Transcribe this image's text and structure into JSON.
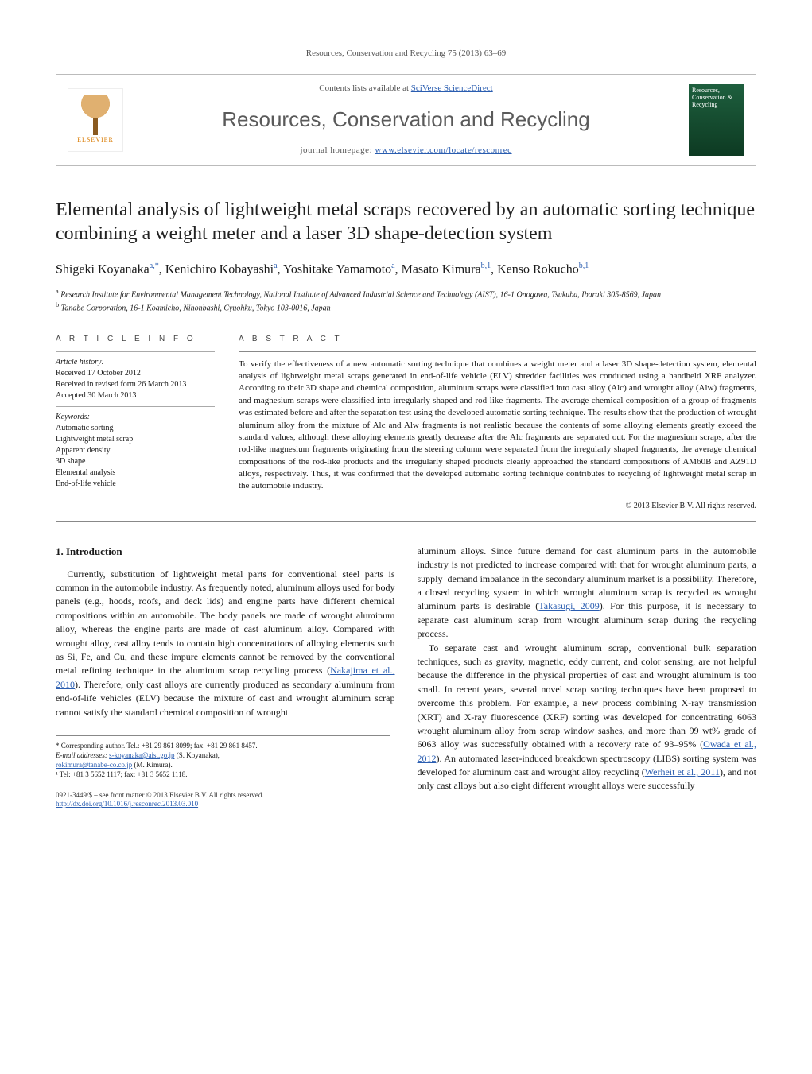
{
  "running_head": {
    "text_prefix": "Resources, Conservation and Recycling 75 (2013) 63–69",
    "link_text": ""
  },
  "masthead": {
    "elsevier_label": "ELSEVIER",
    "contents_prefix": "Contents lists available at ",
    "contents_link": "SciVerse ScienceDirect",
    "journal_name": "Resources, Conservation and Recycling",
    "homepage_prefix": "journal homepage: ",
    "homepage_link": "www.elsevier.com/locate/resconrec",
    "cover_title": "Resources, Conservation & Recycling"
  },
  "article": {
    "title": "Elemental analysis of lightweight metal scraps recovered by an automatic sorting technique combining a weight meter and a laser 3D shape-detection system",
    "authors_html": "Shigeki Koyanaka<sup>a,*</sup>, Kenichiro Kobayashi<sup>a</sup>, Yoshitake Yamamoto<sup>a</sup>, Masato Kimura<sup>b,1</sup>, Kenso Rokucho<sup>b,1</sup>",
    "affiliations": {
      "a": "Research Institute for Environmental Management Technology, National Institute of Advanced Industrial Science and Technology (AIST), 16-1 Onogawa, Tsukuba, Ibaraki 305-8569, Japan",
      "b": "Tanabe Corporation, 16-1 Koamicho, Nihonbashi, Cyuohku, Tokyo 103-0016, Japan"
    }
  },
  "article_info": {
    "heading": "a r t i c l e   i n f o",
    "history_label": "Article history:",
    "history": [
      "Received 17 October 2012",
      "Received in revised form 26 March 2013",
      "Accepted 30 March 2013"
    ],
    "keywords_label": "Keywords:",
    "keywords": [
      "Automatic sorting",
      "Lightweight metal scrap",
      "Apparent density",
      "3D shape",
      "Elemental analysis",
      "End-of-life vehicle"
    ]
  },
  "abstract": {
    "heading": "a b s t r a c t",
    "text": "To verify the effectiveness of a new automatic sorting technique that combines a weight meter and a laser 3D shape-detection system, elemental analysis of lightweight metal scraps generated in end-of-life vehicle (ELV) shredder facilities was conducted using a handheld XRF analyzer. According to their 3D shape and chemical composition, aluminum scraps were classified into cast alloy (Alc) and wrought alloy (Alw) fragments, and magnesium scraps were classified into irregularly shaped and rod-like fragments. The average chemical composition of a group of fragments was estimated before and after the separation test using the developed automatic sorting technique. The results show that the production of wrought aluminum alloy from the mixture of Alc and Alw fragments is not realistic because the contents of some alloying elements greatly exceed the standard values, although these alloying elements greatly decrease after the Alc fragments are separated out. For the magnesium scraps, after the rod-like magnesium fragments originating from the steering column were separated from the irregularly shaped fragments, the average chemical compositions of the rod-like products and the irregularly shaped products clearly approached the standard compositions of AM60B and AZ91D alloys, respectively. Thus, it was confirmed that the developed automatic sorting technique contributes to recycling of lightweight metal scrap in the automobile industry.",
    "copyright": "© 2013 Elsevier B.V. All rights reserved."
  },
  "body": {
    "section1_heading": "1. Introduction",
    "para1": "Currently, substitution of lightweight metal parts for conventional steel parts is common in the automobile industry. As frequently noted, aluminum alloys used for body panels (e.g., hoods, roofs, and deck lids) and engine parts have different chemical compositions within an automobile. The body panels are made of wrought aluminum alloy, whereas the engine parts are made of cast aluminum alloy. Compared with wrought alloy, cast alloy tends to contain high concentrations of alloying elements such as Si, Fe, and Cu, and these impure elements cannot be removed by the conventional metal refining technique in the aluminum scrap recycling process (",
    "cite1": "Nakajima et al., 2010",
    "para1b": "). Therefore, only cast alloys are currently produced as secondary aluminum from end-of-life vehicles (ELV) because the mixture of cast and wrought aluminum scrap cannot satisfy the standard chemical composition of wrought",
    "para2a": "aluminum alloys. Since future demand for cast aluminum parts in the automobile industry is not predicted to increase compared with that for wrought aluminum parts, a supply–demand imbalance in the secondary aluminum market is a possibility. Therefore, a closed recycling system in which wrought aluminum scrap is recycled as wrought aluminum parts is desirable (",
    "cite2": "Takasugi, 2009",
    "para2b": "). For this purpose, it is necessary to separate cast aluminum scrap from wrought aluminum scrap during the recycling process.",
    "para3a": "To separate cast and wrought aluminum scrap, conventional bulk separation techniques, such as gravity, magnetic, eddy current, and color sensing, are not helpful because the difference in the physical properties of cast and wrought aluminum is too small. In recent years, several novel scrap sorting techniques have been proposed to overcome this problem. For example, a new process combining X-ray transmission (XRT) and X-ray fluorescence (XRF) sorting was developed for concentrating 6063 wrought aluminum alloy from scrap window sashes, and more than 99 wt% grade of 6063 alloy was successfully obtained with a recovery rate of 93–95% (",
    "cite3": "Owada et al., 2012",
    "para3b": "). An automated laser-induced breakdown spectroscopy (LIBS) sorting system was developed for aluminum cast and wrought alloy recycling (",
    "cite4": "Werheit et al., 2011",
    "para3c": "), and not only cast alloys but also eight different wrought alloys were successfully"
  },
  "footnotes": {
    "corr_label": "* Corresponding author. Tel.: +81 29 861 8099; fax: +81 29 861 8457.",
    "email_label": "E-mail addresses: ",
    "email1": "s-koyanaka@aist.go.jp",
    "email1_who": " (S. Koyanaka),",
    "email2": "rokimura@tanabe-co.co.jp",
    "email2_who": " (M. Kimura).",
    "note1": "¹ Tel: +81 3 5652 1117; fax: +81 3 5652 1118."
  },
  "footer": {
    "issn_line": "0921-3449/$ – see front matter © 2013 Elsevier B.V. All rights reserved.",
    "doi_link": "http://dx.doi.org/10.1016/j.resconrec.2013.03.010"
  },
  "style": {
    "link_color": "#2a5db0",
    "text_color": "#1a1a1a",
    "rule_color": "#888888",
    "journal_cover_bg_top": "#1e5f3e",
    "journal_cover_bg_bottom": "#0d3a22"
  }
}
